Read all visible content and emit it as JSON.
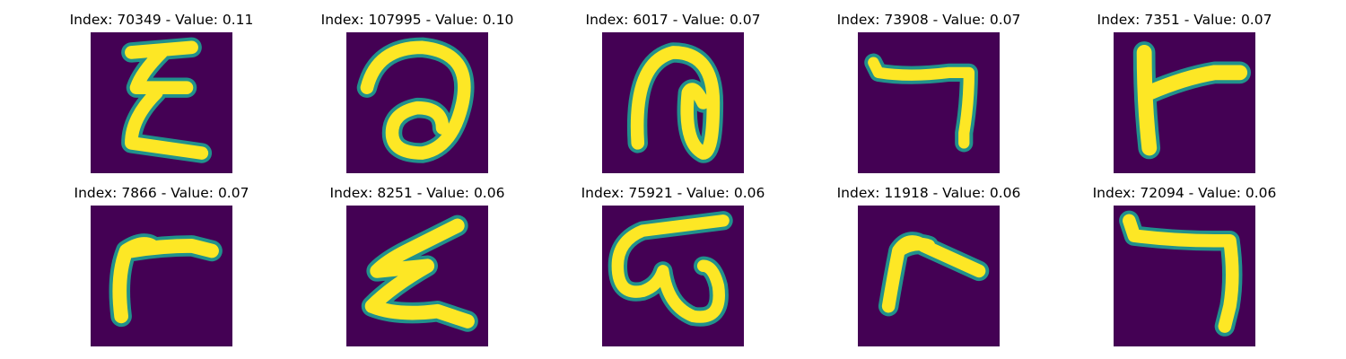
{
  "panels": [
    {
      "title": "Index: 70349 - Value: 0.11",
      "glyph": "glyph-like-xi"
    },
    {
      "title": "Index: 107995 - Value: 0.10",
      "glyph": "glyph-like-loop"
    },
    {
      "title": "Index: 6017 - Value: 0.07",
      "glyph": "glyph-like-n-loop"
    },
    {
      "title": "Index: 73908 - Value: 0.07",
      "glyph": "glyph-like-seven"
    },
    {
      "title": "Index: 7351 - Value: 0.07",
      "glyph": "glyph-like-t-right"
    },
    {
      "title": "Index: 7866 - Value: 0.07",
      "glyph": "glyph-like-gamma"
    },
    {
      "title": "Index: 8251 - Value: 0.06",
      "glyph": "glyph-like-z"
    },
    {
      "title": "Index: 75921 - Value: 0.06",
      "glyph": "glyph-like-omega"
    },
    {
      "title": "Index: 11918 - Value: 0.06",
      "glyph": "glyph-like-gamma-small"
    },
    {
      "title": "Index: 72094 - Value: 0.06",
      "glyph": "glyph-like-seven-tall"
    }
  ],
  "colors": {
    "background": "#440154",
    "stroke_edge": "#21918c",
    "stroke_core": "#fde725"
  }
}
